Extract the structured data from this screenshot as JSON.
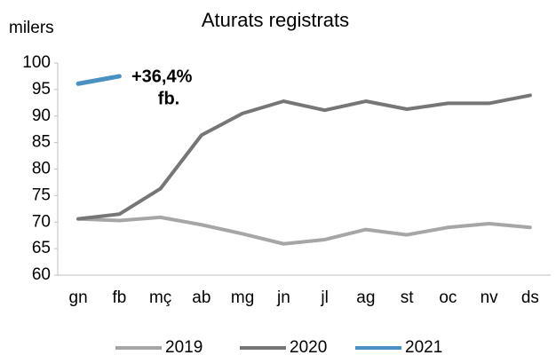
{
  "chart_data": {
    "type": "line",
    "title": "Aturats registrats",
    "y_label": "milers",
    "categories": [
      "gn",
      "fb",
      "mç",
      "ab",
      "mg",
      "jn",
      "jl",
      "ag",
      "st",
      "oc",
      "nv",
      "ds"
    ],
    "series": [
      {
        "name": "2019",
        "color": "#a6a6a6",
        "values": [
          70.6,
          70.3,
          70.9,
          69.5,
          67.8,
          65.9,
          66.7,
          68.6,
          67.6,
          69.0,
          69.7,
          69.0
        ]
      },
      {
        "name": "2020",
        "color": "#767676",
        "values": [
          70.6,
          71.5,
          76.3,
          86.4,
          90.5,
          92.8,
          91.1,
          92.8,
          91.3,
          92.4,
          92.4,
          93.9
        ]
      },
      {
        "name": "2021",
        "color": "#4a90c2",
        "values": [
          96.1,
          97.5,
          null,
          null,
          null,
          null,
          null,
          null,
          null,
          null,
          null,
          null
        ]
      }
    ],
    "annotations": [
      "+36,4%",
      "fb."
    ],
    "ylim": [
      60,
      100
    ],
    "yticks": [
      60,
      65,
      70,
      75,
      80,
      85,
      90,
      95,
      100
    ],
    "grid": false,
    "legend": "bottom"
  }
}
